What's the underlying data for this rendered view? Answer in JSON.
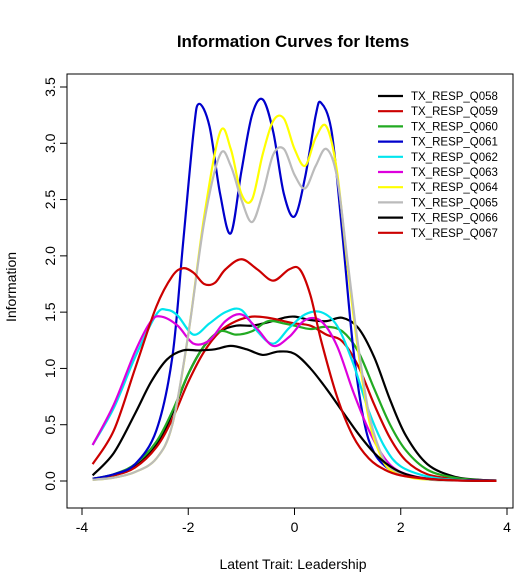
{
  "chart_data": {
    "type": "line",
    "title": "Information Curves for Items",
    "xlabel": "Latent Trait: Leadership",
    "ylabel": "Information",
    "xlim": [
      -3.9,
      3.9
    ],
    "ylim": [
      -0.1,
      3.55
    ],
    "xticks": [
      -4,
      -2,
      0,
      2,
      4
    ],
    "yticks": [
      0.0,
      0.5,
      1.0,
      1.5,
      2.0,
      2.5,
      3.0,
      3.5
    ],
    "xtick_labels": [
      "-4",
      "-2",
      "0",
      "2",
      "4"
    ],
    "ytick_labels": [
      "0.0",
      "0.5",
      "1.0",
      "1.5",
      "2.0",
      "2.5",
      "3.0",
      "3.5"
    ],
    "grid": false,
    "legend_position": "top-right",
    "series": [
      {
        "name": "TX_RESP_Q058",
        "color": "#000000",
        "x": [
          -3.8,
          -3.4,
          -3.0,
          -2.6,
          -2.3,
          -2.0,
          -1.7,
          -1.4,
          -1.1,
          -0.8,
          -0.5,
          -0.2,
          0.0,
          0.3,
          0.6,
          0.9,
          1.2,
          1.5,
          1.8,
          2.1,
          2.5,
          3.0,
          3.5,
          3.8
        ],
        "y": [
          0.02,
          0.05,
          0.13,
          0.32,
          0.6,
          0.95,
          1.2,
          1.33,
          1.38,
          1.38,
          1.41,
          1.45,
          1.46,
          1.43,
          1.42,
          1.45,
          1.36,
          1.1,
          0.72,
          0.4,
          0.15,
          0.04,
          0.01,
          0.005
        ]
      },
      {
        "name": "TX_RESP_Q059",
        "color": "#cc0000",
        "x": [
          -3.8,
          -3.4,
          -3.0,
          -2.6,
          -2.3,
          -2.0,
          -1.7,
          -1.4,
          -1.1,
          -0.8,
          -0.5,
          -0.2,
          0.0,
          0.3,
          0.6,
          0.9,
          1.2,
          1.5,
          1.8,
          2.1,
          2.5,
          3.0,
          3.5,
          3.8
        ],
        "y": [
          0.02,
          0.05,
          0.12,
          0.3,
          0.55,
          0.88,
          1.15,
          1.33,
          1.42,
          1.46,
          1.45,
          1.42,
          1.4,
          1.38,
          1.3,
          1.24,
          1.02,
          0.68,
          0.38,
          0.18,
          0.06,
          0.02,
          0.005,
          0.002
        ]
      },
      {
        "name": "TX_RESP_Q060",
        "color": "#22aa22",
        "x": [
          -3.8,
          -3.4,
          -3.0,
          -2.6,
          -2.3,
          -2.0,
          -1.7,
          -1.4,
          -1.1,
          -0.8,
          -0.5,
          -0.2,
          0.0,
          0.3,
          0.6,
          0.9,
          1.2,
          1.5,
          1.8,
          2.1,
          2.5,
          3.0,
          3.5,
          3.8
        ],
        "y": [
          0.02,
          0.06,
          0.15,
          0.35,
          0.62,
          0.95,
          1.2,
          1.33,
          1.3,
          1.33,
          1.42,
          1.4,
          1.38,
          1.35,
          1.37,
          1.33,
          1.15,
          0.82,
          0.5,
          0.27,
          0.1,
          0.03,
          0.008,
          0.003
        ]
      },
      {
        "name": "TX_RESP_Q061",
        "color": "#0000cc",
        "x": [
          -3.8,
          -3.4,
          -3.0,
          -2.6,
          -2.3,
          -2.1,
          -1.9,
          -1.8,
          -1.6,
          -1.4,
          -1.2,
          -1.0,
          -0.8,
          -0.6,
          -0.4,
          -0.2,
          0.0,
          0.2,
          0.4,
          0.5,
          0.7,
          0.9,
          1.1,
          1.3,
          1.5,
          1.8,
          2.2,
          2.6,
          3.0,
          3.8
        ],
        "y": [
          0.02,
          0.06,
          0.15,
          0.45,
          1.1,
          2.1,
          3.1,
          3.35,
          3.15,
          2.55,
          2.2,
          2.75,
          3.25,
          3.39,
          3.1,
          2.55,
          2.35,
          2.7,
          3.25,
          3.36,
          3.1,
          2.2,
          1.2,
          0.55,
          0.25,
          0.1,
          0.04,
          0.02,
          0.01,
          0.005
        ]
      },
      {
        "name": "TX_RESP_Q062",
        "color": "#00e5ee",
        "x": [
          -3.8,
          -3.4,
          -3.0,
          -2.6,
          -2.4,
          -2.2,
          -1.9,
          -1.6,
          -1.3,
          -1.0,
          -0.7,
          -0.4,
          -0.1,
          0.2,
          0.5,
          0.8,
          1.1,
          1.4,
          1.7,
          2.0,
          2.5,
          3.0,
          3.5,
          3.8
        ],
        "y": [
          0.32,
          0.65,
          1.1,
          1.48,
          1.52,
          1.47,
          1.3,
          1.4,
          1.5,
          1.52,
          1.33,
          1.22,
          1.36,
          1.48,
          1.5,
          1.38,
          1.05,
          0.62,
          0.3,
          0.13,
          0.04,
          0.01,
          0.003,
          0.001
        ]
      },
      {
        "name": "TX_RESP_Q063",
        "color": "#dd00dd",
        "x": [
          -3.8,
          -3.4,
          -3.0,
          -2.7,
          -2.5,
          -2.2,
          -1.9,
          -1.6,
          -1.3,
          -1.0,
          -0.7,
          -0.4,
          -0.1,
          0.2,
          0.5,
          0.8,
          1.1,
          1.4,
          1.7,
          2.0,
          2.5,
          3.0,
          3.5,
          3.8
        ],
        "y": [
          0.32,
          0.68,
          1.15,
          1.42,
          1.46,
          1.38,
          1.22,
          1.25,
          1.42,
          1.48,
          1.35,
          1.2,
          1.28,
          1.43,
          1.42,
          1.2,
          0.8,
          0.45,
          0.2,
          0.08,
          0.02,
          0.005,
          0.002,
          0.001
        ]
      },
      {
        "name": "TX_RESP_Q064",
        "color": "#ffff00",
        "x": [
          -3.8,
          -3.4,
          -3.0,
          -2.6,
          -2.3,
          -2.0,
          -1.7,
          -1.4,
          -1.2,
          -1.0,
          -0.8,
          -0.6,
          -0.4,
          -0.2,
          0.0,
          0.2,
          0.4,
          0.6,
          0.8,
          1.0,
          1.2,
          1.4,
          1.6,
          1.8,
          2.2,
          2.6,
          3.0,
          3.8
        ],
        "y": [
          0.01,
          0.03,
          0.08,
          0.2,
          0.5,
          1.3,
          2.35,
          3.1,
          2.95,
          2.55,
          2.5,
          2.9,
          3.2,
          3.22,
          2.95,
          2.8,
          3.05,
          3.15,
          2.75,
          1.9,
          1.15,
          0.55,
          0.25,
          0.1,
          0.03,
          0.01,
          0.005,
          0.002
        ]
      },
      {
        "name": "TX_RESP_Q065",
        "color": "#bbbbbb",
        "x": [
          -3.8,
          -3.4,
          -3.0,
          -2.6,
          -2.3,
          -2.0,
          -1.7,
          -1.4,
          -1.2,
          -1.0,
          -0.8,
          -0.6,
          -0.4,
          -0.2,
          0.0,
          0.2,
          0.4,
          0.6,
          0.8,
          1.0,
          1.2,
          1.4,
          1.6,
          1.8,
          2.2,
          2.6,
          3.0,
          3.8
        ],
        "y": [
          0.01,
          0.03,
          0.08,
          0.2,
          0.5,
          1.3,
          2.3,
          2.9,
          2.8,
          2.5,
          2.3,
          2.55,
          2.9,
          2.95,
          2.72,
          2.6,
          2.8,
          2.95,
          2.7,
          1.95,
          1.2,
          0.6,
          0.28,
          0.12,
          0.04,
          0.01,
          0.005,
          0.002
        ]
      },
      {
        "name": "TX_RESP_Q066",
        "color": "#000000",
        "x": [
          -3.8,
          -3.4,
          -3.0,
          -2.7,
          -2.4,
          -2.1,
          -1.8,
          -1.5,
          -1.2,
          -0.9,
          -0.6,
          -0.3,
          0.0,
          0.3,
          0.6,
          0.9,
          1.2,
          1.5,
          1.8,
          2.1,
          2.5,
          3.0,
          3.5,
          3.8
        ],
        "y": [
          0.05,
          0.25,
          0.6,
          0.88,
          1.08,
          1.16,
          1.16,
          1.17,
          1.2,
          1.17,
          1.12,
          1.15,
          1.13,
          1.0,
          0.82,
          0.62,
          0.42,
          0.25,
          0.13,
          0.06,
          0.02,
          0.006,
          0.002,
          0.001
        ]
      },
      {
        "name": "TX_RESP_Q067",
        "color": "#cc0000",
        "x": [
          -3.8,
          -3.4,
          -3.0,
          -2.6,
          -2.3,
          -2.1,
          -1.9,
          -1.7,
          -1.5,
          -1.3,
          -1.0,
          -0.7,
          -0.4,
          -0.1,
          0.1,
          0.3,
          0.5,
          0.8,
          1.1,
          1.4,
          1.7,
          2.0,
          2.5,
          3.0,
          3.5,
          3.8
        ],
        "y": [
          0.15,
          0.45,
          1.0,
          1.55,
          1.82,
          1.89,
          1.85,
          1.75,
          1.76,
          1.88,
          1.97,
          1.88,
          1.78,
          1.88,
          1.88,
          1.65,
          1.25,
          0.75,
          0.4,
          0.2,
          0.1,
          0.05,
          0.02,
          0.006,
          0.002,
          0.001
        ]
      }
    ]
  }
}
